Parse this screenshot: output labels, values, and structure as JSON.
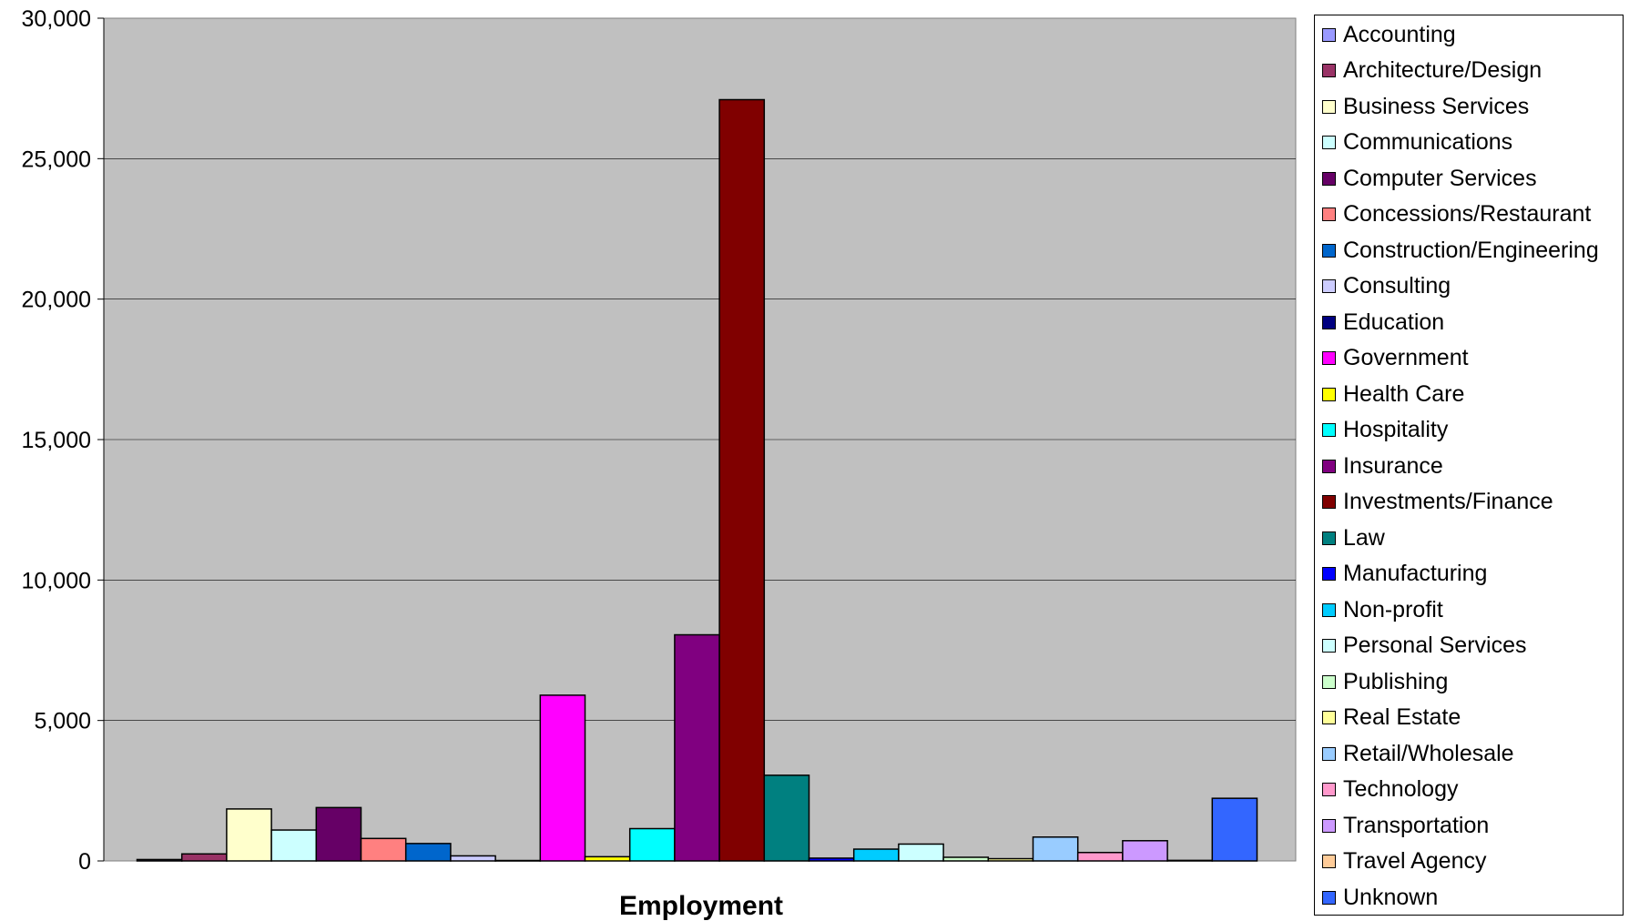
{
  "chart_data": {
    "type": "bar",
    "title": "",
    "xlabel": "Employment",
    "ylabel": "",
    "ylim": [
      0,
      30000
    ],
    "y_ticks": [
      0,
      5000,
      10000,
      15000,
      20000,
      25000,
      30000
    ],
    "y_tick_labels": [
      "0",
      "5,000",
      "10,000",
      "15,000",
      "20,000",
      "25,000",
      "30,000"
    ],
    "grid": true,
    "legend_position": "right",
    "plot_background": "#c0c0c0",
    "series": [
      {
        "name": "Accounting",
        "value": 50,
        "color": "#9999ff"
      },
      {
        "name": "Architecture/Design",
        "value": 250,
        "color": "#993366"
      },
      {
        "name": "Business Services",
        "value": 1850,
        "color": "#ffffcc"
      },
      {
        "name": "Communications",
        "value": 1100,
        "color": "#ccffff"
      },
      {
        "name": "Computer Services",
        "value": 1900,
        "color": "#660066"
      },
      {
        "name": "Concessions/Restaurant",
        "value": 800,
        "color": "#ff8080"
      },
      {
        "name": "Construction/Engineering",
        "value": 620,
        "color": "#0066cc"
      },
      {
        "name": "Consulting",
        "value": 180,
        "color": "#ccccff"
      },
      {
        "name": "Education",
        "value": 15,
        "color": "#000080"
      },
      {
        "name": "Government",
        "value": 5900,
        "color": "#ff00ff"
      },
      {
        "name": "Health Care",
        "value": 150,
        "color": "#ffff00"
      },
      {
        "name": "Hospitality",
        "value": 1150,
        "color": "#00ffff"
      },
      {
        "name": "Insurance",
        "value": 8050,
        "color": "#800080"
      },
      {
        "name": "Investments/Finance",
        "value": 27100,
        "color": "#800000"
      },
      {
        "name": "Law",
        "value": 3050,
        "color": "#008080"
      },
      {
        "name": "Manufacturing",
        "value": 100,
        "color": "#0000ff"
      },
      {
        "name": "Non-profit",
        "value": 420,
        "color": "#00ccff"
      },
      {
        "name": "Personal Services",
        "value": 600,
        "color": "#ccffff"
      },
      {
        "name": "Publishing",
        "value": 130,
        "color": "#ccffcc"
      },
      {
        "name": "Real Estate",
        "value": 80,
        "color": "#ffff99"
      },
      {
        "name": "Retail/Wholesale",
        "value": 850,
        "color": "#99ccff"
      },
      {
        "name": "Technology",
        "value": 300,
        "color": "#ff99cc"
      },
      {
        "name": "Transportation",
        "value": 720,
        "color": "#cc99ff"
      },
      {
        "name": "Travel Agency",
        "value": 20,
        "color": "#ffcc99"
      },
      {
        "name": "Unknown",
        "value": 2230,
        "color": "#3366ff"
      }
    ]
  }
}
